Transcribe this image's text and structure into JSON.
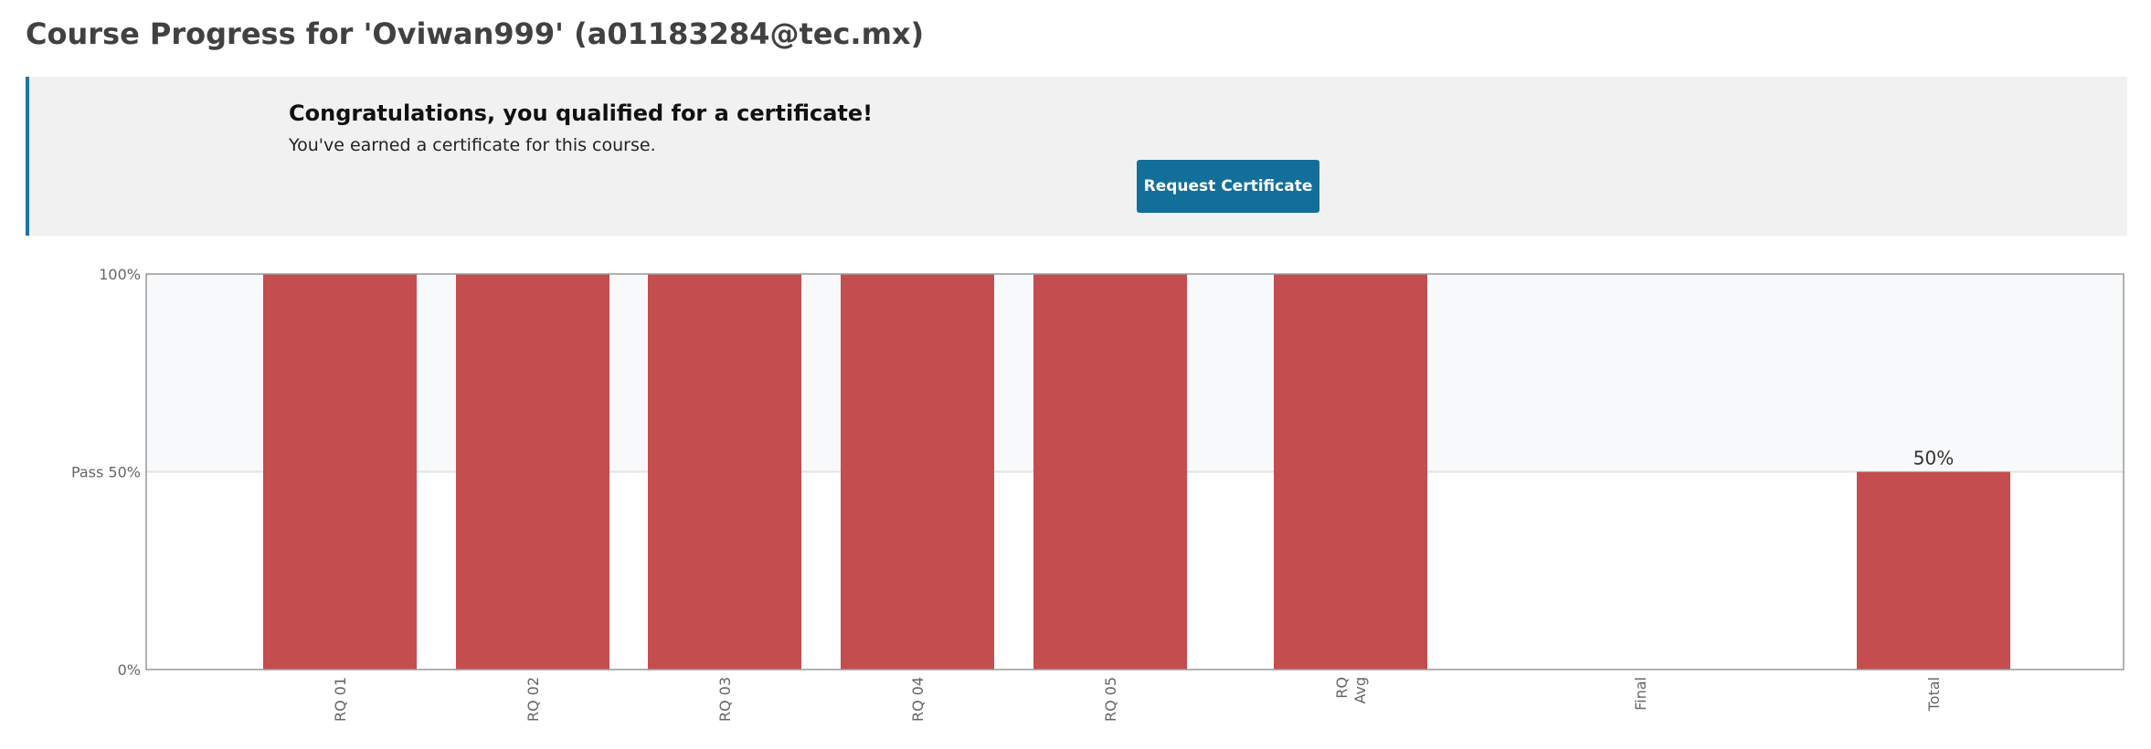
{
  "page": {
    "title": "Course Progress for 'Oviwan999' (a01183284@tec.mx)"
  },
  "certificate": {
    "title": "Congratulations, you qualified for a certificate!",
    "message": "You've earned a certificate for this course.",
    "button_label": "Request Certificate"
  },
  "colors": {
    "bar": "#c44d4f",
    "banner_accent": "#1e73a6",
    "button": "#126f9a",
    "passing_band": "#f8f9fa"
  },
  "chart_data": {
    "type": "bar",
    "categories": [
      {
        "lines": [
          "RQ 01"
        ]
      },
      {
        "lines": [
          "RQ 02"
        ]
      },
      {
        "lines": [
          "RQ 03"
        ]
      },
      {
        "lines": [
          "RQ 04"
        ]
      },
      {
        "lines": [
          "RQ 05"
        ]
      },
      {
        "lines": [
          "RQ",
          "Avg"
        ]
      },
      {
        "lines": [
          "Final"
        ]
      },
      {
        "lines": [
          "Total"
        ]
      }
    ],
    "values": [
      100,
      100,
      100,
      100,
      100,
      100,
      0,
      50
    ],
    "data_labels": [
      "",
      "",
      "",
      "",
      "",
      "",
      "",
      "50%"
    ],
    "ylim": [
      0,
      100
    ],
    "y_ticks": [
      {
        "value": 0,
        "label": "0%"
      },
      {
        "value": 50,
        "label": "Pass 50%"
      },
      {
        "value": 100,
        "label": "100%"
      }
    ],
    "pass_threshold": 50,
    "grid": true
  }
}
